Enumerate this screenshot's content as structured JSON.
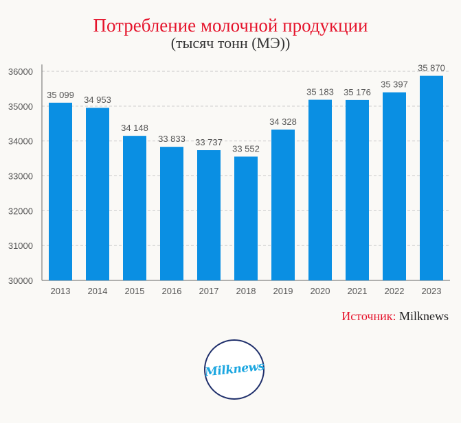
{
  "colors": {
    "bar": "#0a8fe3",
    "title": "#e5132b",
    "axis_text": "#555555",
    "value_text": "#555555",
    "logo_border": "#1f2f6b",
    "logo_text": "#1ba6e0"
  },
  "chart_data": {
    "type": "bar",
    "title": "Потребление молочной продукции",
    "subtitle": "(тысяч тонн (МЭ))",
    "categories": [
      "2013",
      "2014",
      "2015",
      "2016",
      "2017",
      "2018",
      "2019",
      "2020",
      "2021",
      "2022",
      "2023"
    ],
    "values": [
      35099,
      34953,
      34148,
      33833,
      33737,
      33552,
      34328,
      35183,
      35176,
      35397,
      35870
    ],
    "value_labels": [
      "35 099",
      "34 953",
      "34 148",
      "33 833",
      "33 737",
      "33 552",
      "34 328",
      "35 183",
      "35 176",
      "35 397",
      "35 870"
    ],
    "ylim": [
      30000,
      36000
    ],
    "yticks": [
      "30000",
      "31000",
      "32000",
      "33000",
      "34000",
      "35000",
      "36000"
    ],
    "grid": true,
    "legend": "none"
  },
  "source": {
    "label": "Источник:",
    "value": "Milknews"
  },
  "logo": {
    "text": "Milknews"
  }
}
